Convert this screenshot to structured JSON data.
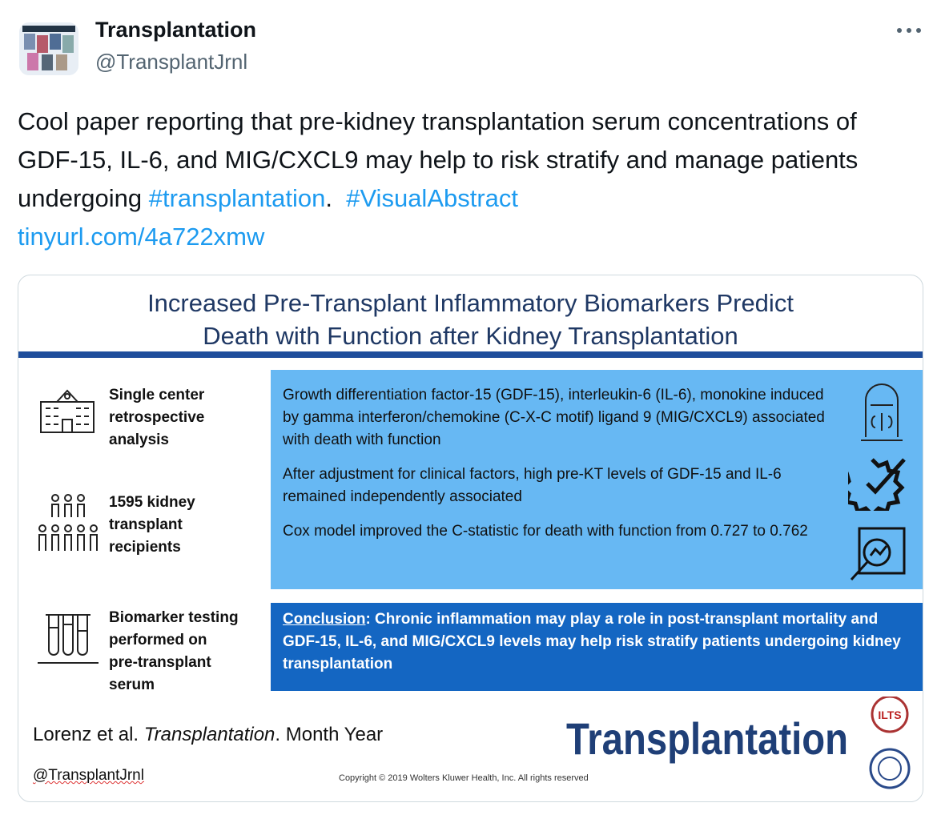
{
  "tweet": {
    "author": {
      "name": "Transplantation",
      "handle": "@TransplantJrnl"
    },
    "text": {
      "body": "Cool paper reporting that pre-kidney transplantation serum concentrations of GDF-15, IL-6, and MIG/CXCL9 may help to risk stratify and manage patients undergoing ",
      "hashtag1": "#transplantation",
      "separator": ".  ",
      "hashtag2": "#VisualAbstract",
      "link": "tinyurl.com/4a722xmw"
    }
  },
  "abstract": {
    "title": [
      "Increased Pre-Transplant Inflammatory Biomarkers Predict",
      "Death with Function after Kidney Transplantation"
    ],
    "left_items": [
      [
        "Single center",
        "retrospective",
        "analysis"
      ],
      [
        "1595 kidney",
        "transplant",
        "recipients"
      ],
      [
        "Biomarker testing",
        "performed on",
        "pre-transplant",
        "serum"
      ]
    ],
    "findings": [
      "Growth differentiation factor-15 (GDF-15), interleukin-6 (IL-6),  monokine induced by gamma interferon/chemokine (C-X-C motif) ligand 9 (MIG/CXCL9) associated with death with function",
      "After adjustment for clinical factors, high pre-KT levels of GDF-15 and IL-6 remained independently associated",
      "Cox model improved the C-statistic for death with function from 0.727 to 0.762"
    ],
    "conclusion": {
      "label": "Conclusion",
      "text": ": Chronic inflammation may play a role in post-transplant mortality and GDF-15, IL-6, and MIG/CXCL9 levels may help risk stratify patients undergoing kidney transplantation"
    },
    "citation": {
      "authors": "Lorenz et al. ",
      "journal": "Transplantation",
      "date": ". Month Year"
    },
    "handle": "@TransplantJrnl",
    "copyright": "Copyright © 2019  Wolters Kluwer Health, Inc. All rights reserved",
    "logo": "Transplantation",
    "badge": "ILTS"
  }
}
